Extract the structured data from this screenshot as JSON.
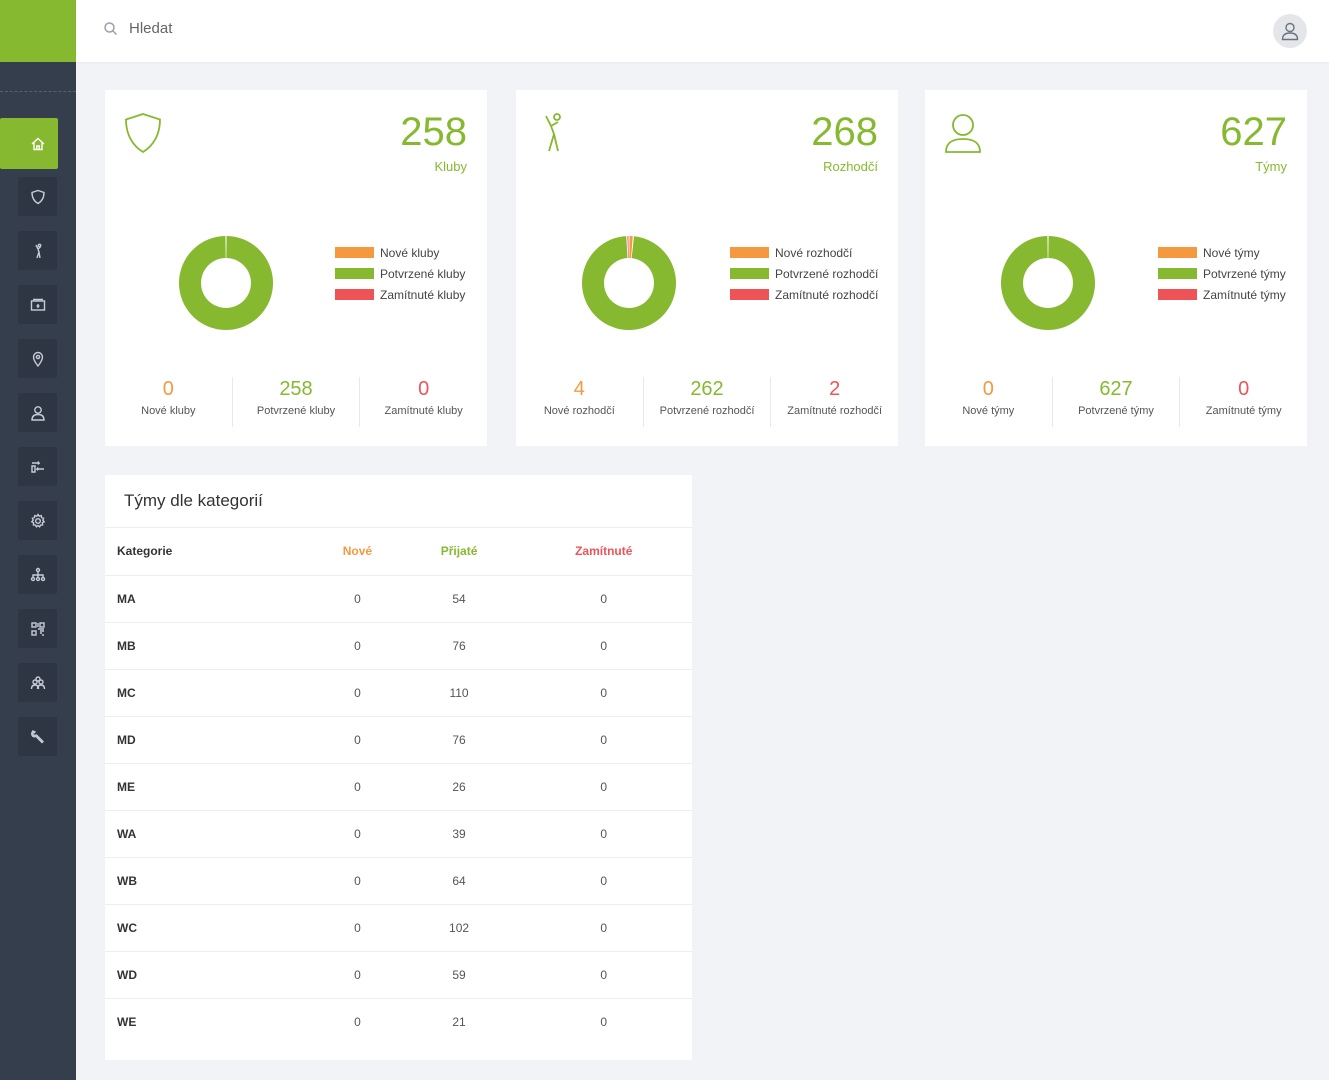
{
  "search": {
    "placeholder": "Hledat"
  },
  "nav": [
    {
      "icon": "home-icon"
    },
    {
      "icon": "shield-icon"
    },
    {
      "icon": "referee-icon"
    },
    {
      "icon": "payment-icon"
    },
    {
      "icon": "location-pin-icon"
    },
    {
      "icon": "user-icon"
    },
    {
      "icon": "transfer-icon"
    },
    {
      "icon": "settings-icon"
    },
    {
      "icon": "hierarchy-icon"
    },
    {
      "icon": "qr-code-icon"
    },
    {
      "icon": "group-icon"
    },
    {
      "icon": "wrench-icon"
    }
  ],
  "colors": {
    "new": "#f59940",
    "confirmed": "#86b92f",
    "rejected": "#ee5457"
  },
  "cards": [
    {
      "icon": "shield-icon",
      "count": "258",
      "label": "Kluby",
      "legend": [
        "Nové kluby",
        "Potvrzené kluby",
        "Zamítnuté kluby"
      ],
      "stats": [
        {
          "value": "0",
          "label": "Nové kluby"
        },
        {
          "value": "258",
          "label": "Potvrzené kluby"
        },
        {
          "value": "0",
          "label": "Zamítnuté kluby"
        }
      ],
      "chart": {
        "new": 0,
        "confirmed": 258,
        "rejected": 0
      }
    },
    {
      "icon": "referee-icon",
      "count": "268",
      "label": "Rozhodčí",
      "legend": [
        "Nové rozhodčí",
        "Potvrzené rozhodčí",
        "Zamítnuté rozhodčí"
      ],
      "stats": [
        {
          "value": "4",
          "label": "Nové rozhodčí"
        },
        {
          "value": "262",
          "label": "Potvrzené rozhodčí"
        },
        {
          "value": "2",
          "label": "Zamítnuté rozhodčí"
        }
      ],
      "chart": {
        "new": 4,
        "confirmed": 262,
        "rejected": 2
      }
    },
    {
      "icon": "user-icon",
      "count": "627",
      "label": "Týmy",
      "legend": [
        "Nové týmy",
        "Potvrzené týmy",
        "Zamítnuté týmy"
      ],
      "stats": [
        {
          "value": "0",
          "label": "Nové týmy"
        },
        {
          "value": "627",
          "label": "Potvrzené týmy"
        },
        {
          "value": "0",
          "label": "Zamítnuté týmy"
        }
      ],
      "chart": {
        "new": 0,
        "confirmed": 627,
        "rejected": 0
      }
    }
  ],
  "table": {
    "title": "Týmy dle kategorií",
    "headers": [
      "Kategorie",
      "Nové",
      "Přijaté",
      "Zamítnuté"
    ],
    "rows": [
      [
        "MA",
        "0",
        "54",
        "0"
      ],
      [
        "MB",
        "0",
        "76",
        "0"
      ],
      [
        "MC",
        "0",
        "110",
        "0"
      ],
      [
        "MD",
        "0",
        "76",
        "0"
      ],
      [
        "ME",
        "0",
        "26",
        "0"
      ],
      [
        "WA",
        "0",
        "39",
        "0"
      ],
      [
        "WB",
        "0",
        "64",
        "0"
      ],
      [
        "WC",
        "0",
        "102",
        "0"
      ],
      [
        "WD",
        "0",
        "59",
        "0"
      ],
      [
        "WE",
        "0",
        "21",
        "0"
      ]
    ]
  }
}
